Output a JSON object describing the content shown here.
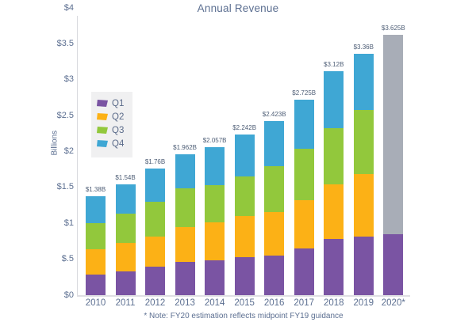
{
  "chart_data": {
    "type": "stacked-bar",
    "title": "Annual Revenue",
    "ylabel": "Billions",
    "ylim": [
      0,
      4
    ],
    "grid": false,
    "legend_position": "upper-left-inside",
    "yticks": [
      {
        "value": 0,
        "label": "$0"
      },
      {
        "value": 0.5,
        "label": "$.5"
      },
      {
        "value": 1,
        "label": "$1"
      },
      {
        "value": 1.5,
        "label": "$1.5"
      },
      {
        "value": 2,
        "label": "$2"
      },
      {
        "value": 2.5,
        "label": "$2.5"
      },
      {
        "value": 3,
        "label": "$3"
      },
      {
        "value": 3.5,
        "label": "$3.5"
      },
      {
        "value": 4,
        "label": "$4"
      }
    ],
    "categories": [
      "2010",
      "2011",
      "2012",
      "2013",
      "2014",
      "2015",
      "2016",
      "2017",
      "2018",
      "2019",
      "2020*"
    ],
    "totals": [
      "$1.38B",
      "$1.54B",
      "$1.76B",
      "$1.962B",
      "$2.057B",
      "$2.242B",
      "$2.423B",
      "$2.725B",
      "$3.12B",
      "$3.36B",
      "$3.625B"
    ],
    "series": [
      {
        "name": "Q1",
        "color": "#7a54a3",
        "values": [
          0.29,
          0.33,
          0.4,
          0.46,
          0.48,
          0.53,
          0.55,
          0.65,
          0.78,
          0.82,
          0.85
        ]
      },
      {
        "name": "Q2",
        "color": "#fcb116",
        "values": [
          0.35,
          0.4,
          0.42,
          0.49,
          0.53,
          0.57,
          0.61,
          0.67,
          0.76,
          0.87,
          null
        ]
      },
      {
        "name": "Q3",
        "color": "#92c83c",
        "values": [
          0.36,
          0.4,
          0.48,
          0.54,
          0.52,
          0.55,
          0.64,
          0.72,
          0.78,
          0.89,
          null
        ]
      },
      {
        "name": "Q4",
        "color": "#3fa7d4",
        "values": [
          0.38,
          0.41,
          0.46,
          0.472,
          0.527,
          0.592,
          0.623,
          0.685,
          0.8,
          0.78,
          null
        ]
      },
      {
        "name": "FY20 estimate",
        "color": "#a8adb7",
        "values": [
          null,
          null,
          null,
          null,
          null,
          null,
          null,
          null,
          null,
          null,
          2.775
        ]
      }
    ],
    "legend": [
      "Q1",
      "Q2",
      "Q3",
      "Q4"
    ],
    "note": "* Note: FY20 estimation reflects midpoint FY19 guidance"
  },
  "colors": {
    "title_text": "#5c6f91",
    "axis_text": "#5c6f91",
    "data_label_text": "#4e5e76",
    "axis_line": "#d9dade",
    "legend_background": "#f0f0f1"
  }
}
